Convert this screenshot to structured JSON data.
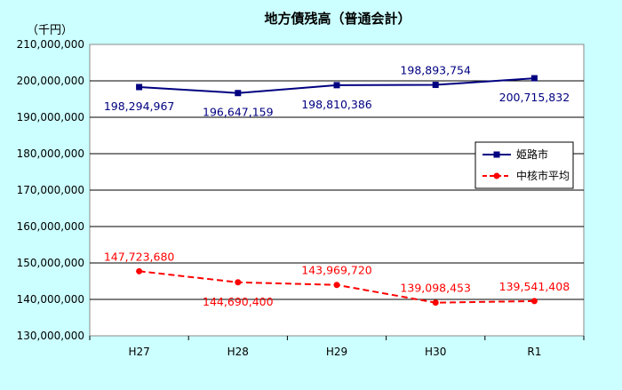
{
  "chart_data": {
    "type": "line",
    "title": "地方債残高（普通会計）",
    "unit_label": "（千円）",
    "categories": [
      "H27",
      "H28",
      "H29",
      "H30",
      "R1"
    ],
    "ylim": [
      130000000,
      210000000
    ],
    "y_ticks": [
      {
        "value": 130000000,
        "label": "130,000,000"
      },
      {
        "value": 140000000,
        "label": "140,000,000"
      },
      {
        "value": 150000000,
        "label": "150,000,000"
      },
      {
        "value": 160000000,
        "label": "160,000,000"
      },
      {
        "value": 170000000,
        "label": "170,000,000"
      },
      {
        "value": 180000000,
        "label": "180,000,000"
      },
      {
        "value": 190000000,
        "label": "190,000,000"
      },
      {
        "value": 200000000,
        "label": "200,000,000"
      },
      {
        "value": 210000000,
        "label": "210,000,000"
      }
    ],
    "grid": true,
    "legend_position": "right",
    "series": [
      {
        "name": "姫路市",
        "color": "#000080",
        "marker": "square",
        "dash": "solid",
        "values": [
          198294967,
          196647159,
          198810386,
          198893754,
          200715832
        ],
        "labels": [
          "198,294,967",
          "196,647,159",
          "198,810,386",
          "198,893,754",
          "200,715,832"
        ],
        "label_placement": [
          "below",
          "below",
          "below",
          "above",
          "below"
        ]
      },
      {
        "name": "中核市平均",
        "color": "#ff0000",
        "marker": "circle",
        "dash": "dashed",
        "values": [
          147723680,
          144690400,
          143969720,
          139098453,
          139541408
        ],
        "labels": [
          "147,723,680",
          "144,690,400",
          "143,969,720",
          "139,098,453",
          "139,541,408"
        ],
        "label_placement": [
          "above",
          "below",
          "above",
          "above",
          "above"
        ]
      }
    ]
  }
}
